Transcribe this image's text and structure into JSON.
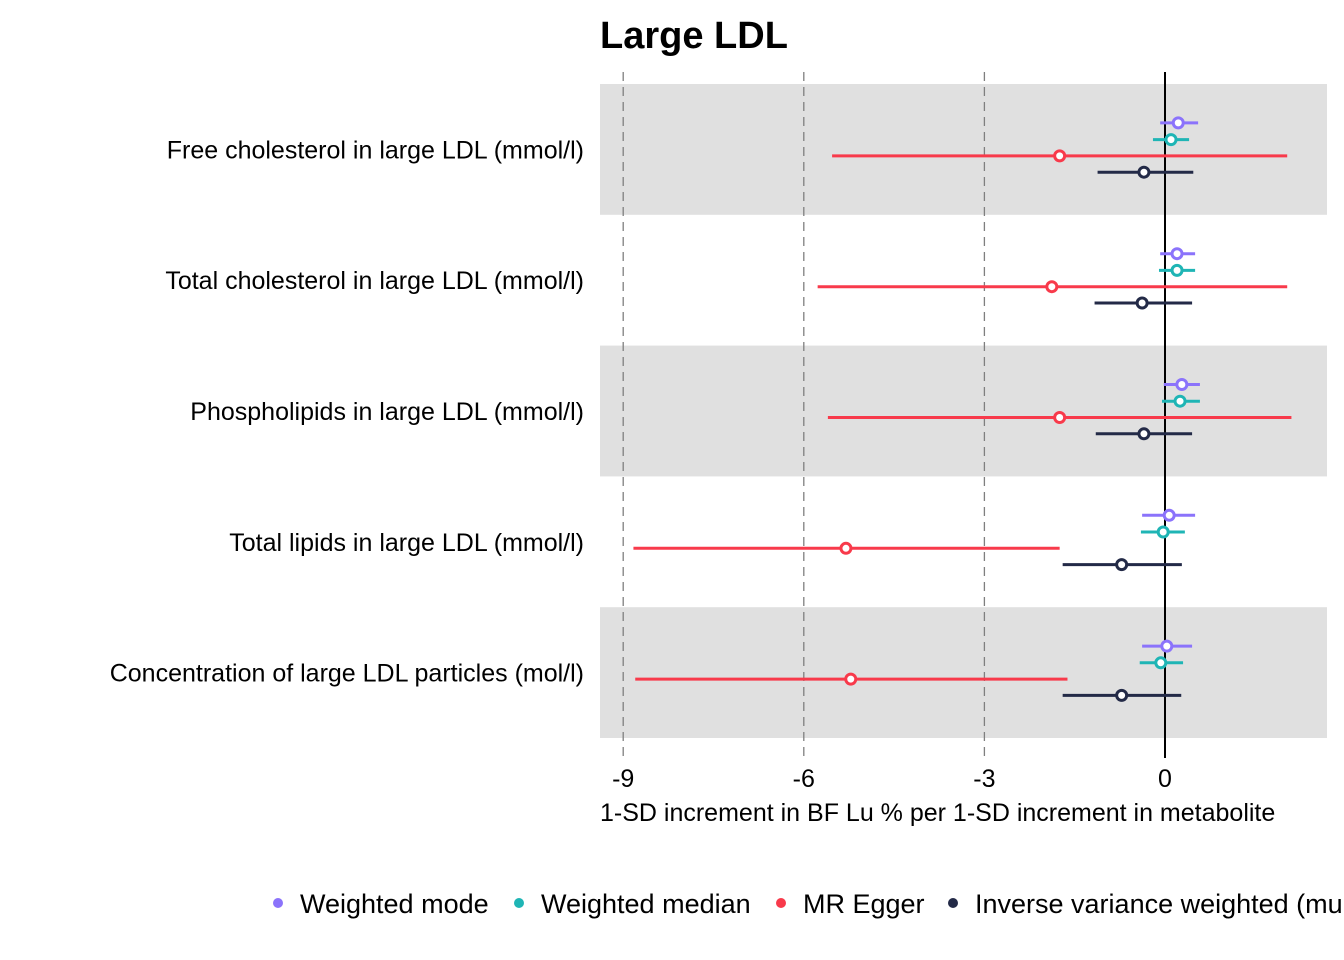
{
  "chart_data": {
    "type": "forest",
    "title": "Large LDL",
    "xlabel": "1-SD increment in BF Lu % per 1-SD increment in metabolite",
    "ylabel": "",
    "xlim": [
      -9.5,
      2.7
    ],
    "x_ticks": [
      -9,
      -6,
      -3,
      0
    ],
    "x_tick_labels": [
      "-9",
      "-6",
      "-3",
      "0"
    ],
    "reference_line": 0,
    "dashed_lines": [
      -9,
      -6,
      -3
    ],
    "categories": [
      "Free cholesterol in large LDL (mmol/l)",
      "Total cholesterol in large LDL (mmol/l)",
      "Phospholipids in large LDL (mmol/l)",
      "Total lipids in large LDL (mmol/l)",
      "Concentration of large LDL particles (mol/l)"
    ],
    "band_shading": [
      true,
      false,
      true,
      false,
      true
    ],
    "band_color": "#e0e0e0",
    "legend_position": "bottom",
    "series": [
      {
        "name": "Weighted mode",
        "color": "#8b73fb",
        "estimates": [
          0.22,
          0.2,
          0.28,
          0.07,
          0.03
        ],
        "lower": [
          -0.08,
          -0.08,
          -0.02,
          -0.38,
          -0.38
        ],
        "upper": [
          0.55,
          0.5,
          0.58,
          0.5,
          0.45
        ]
      },
      {
        "name": "Weighted median",
        "color": "#1fb5b5",
        "estimates": [
          0.1,
          0.2,
          0.25,
          -0.03,
          -0.07
        ],
        "lower": [
          -0.2,
          -0.1,
          -0.05,
          -0.4,
          -0.42
        ],
        "upper": [
          0.4,
          0.5,
          0.58,
          0.33,
          0.3
        ]
      },
      {
        "name": "MR Egger",
        "color": "#f83a4b",
        "estimates": [
          -1.75,
          -1.88,
          -1.75,
          -5.3,
          -5.22
        ],
        "lower": [
          -5.53,
          -5.77,
          -5.6,
          -8.83,
          -8.8
        ],
        "upper": [
          2.03,
          2.03,
          2.1,
          -1.75,
          -1.62
        ]
      },
      {
        "name": "Inverse variance weighted (multiplicative random effects)",
        "color": "#232a47",
        "estimates": [
          -0.35,
          -0.38,
          -0.35,
          -0.72,
          -0.72
        ],
        "lower": [
          -1.12,
          -1.17,
          -1.15,
          -1.7,
          -1.7
        ],
        "upper": [
          0.47,
          0.45,
          0.45,
          0.28,
          0.27
        ]
      }
    ]
  }
}
